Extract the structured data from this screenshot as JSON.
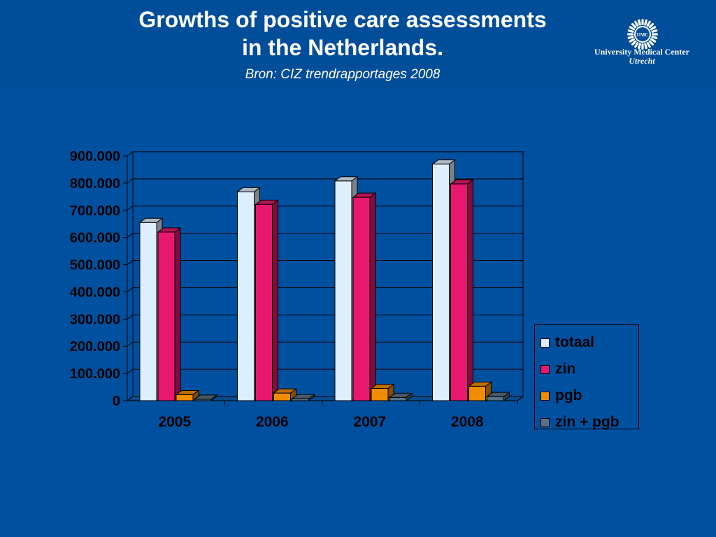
{
  "header": {
    "title_line1": "Growths of positive care assessments",
    "title_line2": "in the  Netherlands.",
    "subtitle": "Bron: CIZ trendrapportages 2008",
    "logo_badge": "UMC",
    "logo_line1": "University Medical Center",
    "logo_line2": "Utrecht"
  },
  "colors": {
    "background": "#0050a0",
    "totaal": "#ddeeff",
    "zin": "#e8186e",
    "pgb": "#f08c00",
    "zin_pgb": "#5a7288"
  },
  "chart_data": {
    "type": "bar",
    "categories": [
      "2005",
      "2006",
      "2007",
      "2008"
    ],
    "series": [
      {
        "name": "totaal",
        "values": [
          655000,
          768000,
          808000,
          870000
        ]
      },
      {
        "name": "zin",
        "values": [
          620000,
          722000,
          748000,
          797000
        ]
      },
      {
        "name": "pgb",
        "values": [
          22000,
          28000,
          45000,
          53000
        ]
      },
      {
        "name": "zin + pgb",
        "values": [
          5000,
          7000,
          12000,
          15000
        ]
      }
    ],
    "y_ticks": [
      "0",
      "100.000",
      "200.000",
      "300.000",
      "400.000",
      "500.000",
      "600.000",
      "700.000",
      "800.000",
      "900.000"
    ],
    "ylim": [
      0,
      900000
    ],
    "grid": true,
    "legend_position": "right",
    "style": "3d-clustered-column"
  }
}
